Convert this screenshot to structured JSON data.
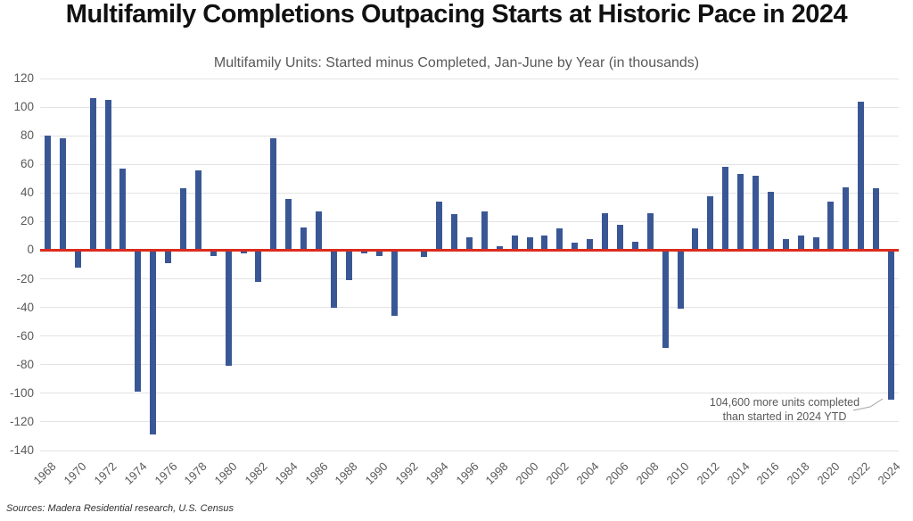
{
  "header": {
    "title": "Multifamily Completions Outpacing Starts at Historic Pace in 2024"
  },
  "annotation": {
    "line1": "104,600 more units completed",
    "line2": "than started in 2024 YTD"
  },
  "footer": {
    "sources": "Sources: Madera Residential research, U.S. Census"
  },
  "colors": {
    "bar": "#3a5795",
    "zero_line": "#db2b1f",
    "gridline": "#e3e3e3",
    "axis_text": "#595959",
    "title_text": "#111111"
  },
  "chart_data": {
    "type": "bar",
    "title": "Multifamily Units: Started minus Completed, Jan-June by Year (in thousands)",
    "xlabel": "",
    "ylabel": "",
    "ylim": [
      -140,
      120
    ],
    "yticks": [
      120,
      100,
      80,
      60,
      40,
      20,
      0,
      -20,
      -40,
      -60,
      -80,
      -100,
      -120,
      -140
    ],
    "grid": true,
    "zero_line": true,
    "legend": "none",
    "years": [
      1968,
      1969,
      1970,
      1971,
      1972,
      1973,
      1974,
      1975,
      1976,
      1977,
      1978,
      1979,
      1980,
      1981,
      1982,
      1983,
      1984,
      1985,
      1986,
      1987,
      1988,
      1989,
      1990,
      1991,
      1992,
      1993,
      1994,
      1995,
      1996,
      1997,
      1998,
      1999,
      2000,
      2001,
      2002,
      2003,
      2004,
      2005,
      2006,
      2007,
      2008,
      2009,
      2010,
      2011,
      2012,
      2013,
      2014,
      2015,
      2016,
      2017,
      2018,
      2019,
      2020,
      2021,
      2022,
      2023,
      2024
    ],
    "values": [
      80,
      78,
      -12,
      106,
      105,
      57,
      -99,
      -129,
      -9,
      43,
      56,
      -4,
      -81,
      -2,
      -22,
      78,
      36,
      16,
      27,
      -40,
      -21,
      -2,
      -4,
      -46,
      0,
      -5,
      34,
      25,
      9,
      27,
      3,
      10,
      9,
      10,
      15,
      5,
      8,
      26,
      18,
      6,
      26,
      -68,
      -41,
      15,
      38,
      58,
      53,
      52,
      41,
      8,
      10,
      9,
      34,
      44,
      104,
      43,
      -104.6
    ],
    "xtick_labels": [
      "1968",
      "1970",
      "1972",
      "1974",
      "1976",
      "1978",
      "1980",
      "1982",
      "1984",
      "1986",
      "1988",
      "1990",
      "1992",
      "1994",
      "1996",
      "1998",
      "2000",
      "2002",
      "2004",
      "2006",
      "2008",
      "2010",
      "2012",
      "2014",
      "2016",
      "2018",
      "2020",
      "2022",
      "2024"
    ]
  }
}
